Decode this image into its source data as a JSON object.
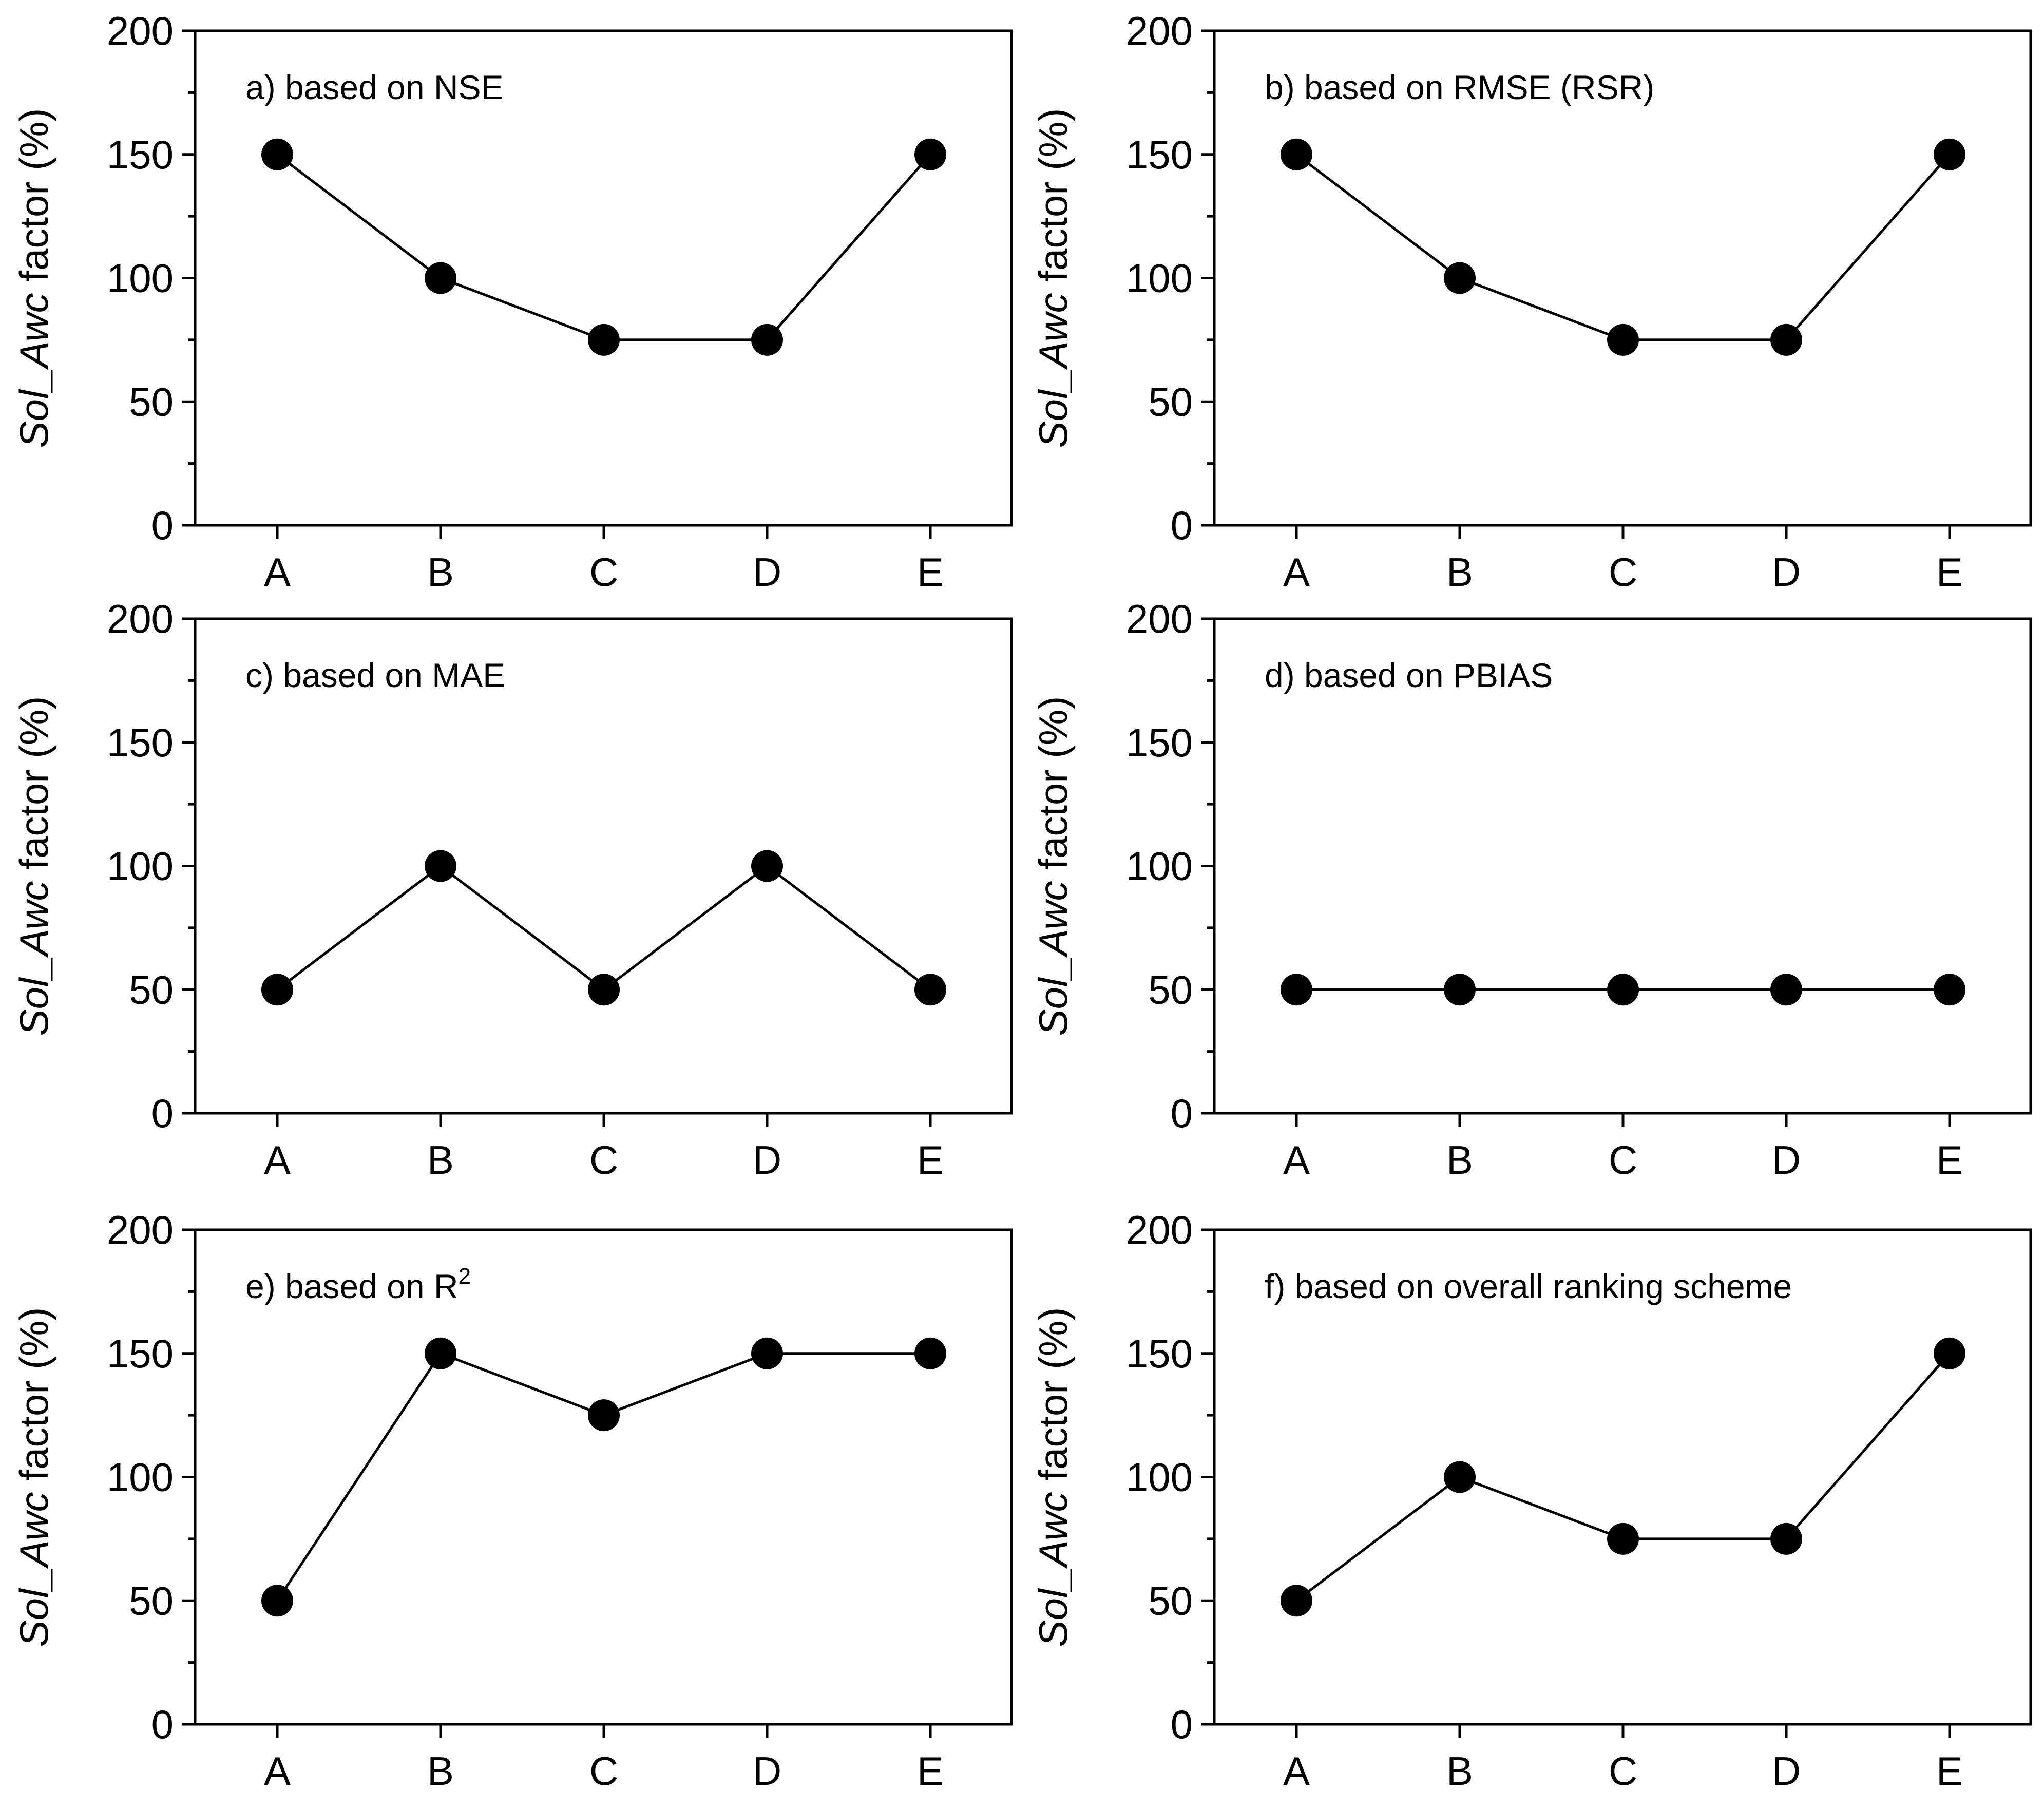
{
  "chart_data": [
    {
      "type": "line",
      "title": "a) based on NSE",
      "title_main": "a) based on NSE",
      "title_sup": "",
      "categories": [
        "A",
        "B",
        "C",
        "D",
        "E"
      ],
      "values": [
        150,
        100,
        75,
        75,
        150
      ],
      "ylabel_italic": "Sol_Awc",
      "ylabel_rest": " factor (%)",
      "ylim": [
        0,
        200
      ],
      "yticks": [
        0,
        50,
        100,
        150,
        200
      ],
      "grid": false
    },
    {
      "type": "line",
      "title": "b) based on RMSE (RSR)",
      "title_main": "b) based on RMSE (RSR)",
      "title_sup": "",
      "categories": [
        "A",
        "B",
        "C",
        "D",
        "E"
      ],
      "values": [
        150,
        100,
        75,
        75,
        150
      ],
      "ylabel_italic": "Sol_Awc",
      "ylabel_rest": " factor (%)",
      "ylim": [
        0,
        200
      ],
      "yticks": [
        0,
        50,
        100,
        150,
        200
      ],
      "grid": false
    },
    {
      "type": "line",
      "title": "c) based on MAE",
      "title_main": "c) based on MAE",
      "title_sup": "",
      "categories": [
        "A",
        "B",
        "C",
        "D",
        "E"
      ],
      "values": [
        50,
        100,
        50,
        100,
        50
      ],
      "ylabel_italic": "Sol_Awc",
      "ylabel_rest": " factor (%)",
      "ylim": [
        0,
        200
      ],
      "yticks": [
        0,
        50,
        100,
        150,
        200
      ],
      "grid": false
    },
    {
      "type": "line",
      "title": "d) based on PBIAS",
      "title_main": "d) based on PBIAS",
      "title_sup": "",
      "categories": [
        "A",
        "B",
        "C",
        "D",
        "E"
      ],
      "values": [
        50,
        50,
        50,
        50,
        50
      ],
      "ylabel_italic": "Sol_Awc",
      "ylabel_rest": " factor (%)",
      "ylim": [
        0,
        200
      ],
      "yticks": [
        0,
        50,
        100,
        150,
        200
      ],
      "grid": false
    },
    {
      "type": "line",
      "title": "e) based on R2",
      "title_main": "e) based on R",
      "title_sup": "2",
      "categories": [
        "A",
        "B",
        "C",
        "D",
        "E"
      ],
      "values": [
        50,
        150,
        125,
        150,
        150
      ],
      "ylabel_italic": "Sol_Awc",
      "ylabel_rest": " factor (%)",
      "ylim": [
        0,
        200
      ],
      "yticks": [
        0,
        50,
        100,
        150,
        200
      ],
      "grid": false
    },
    {
      "type": "line",
      "title": "f) based on overall ranking scheme",
      "title_main": "f) based on overall ranking scheme",
      "title_sup": "",
      "categories": [
        "A",
        "B",
        "C",
        "D",
        "E"
      ],
      "values": [
        50,
        100,
        75,
        75,
        150
      ],
      "ylabel_italic": "Sol_Awc",
      "ylabel_rest": " factor (%)",
      "ylim": [
        0,
        200
      ],
      "yticks": [
        0,
        50,
        100,
        150,
        200
      ],
      "grid": false
    }
  ]
}
